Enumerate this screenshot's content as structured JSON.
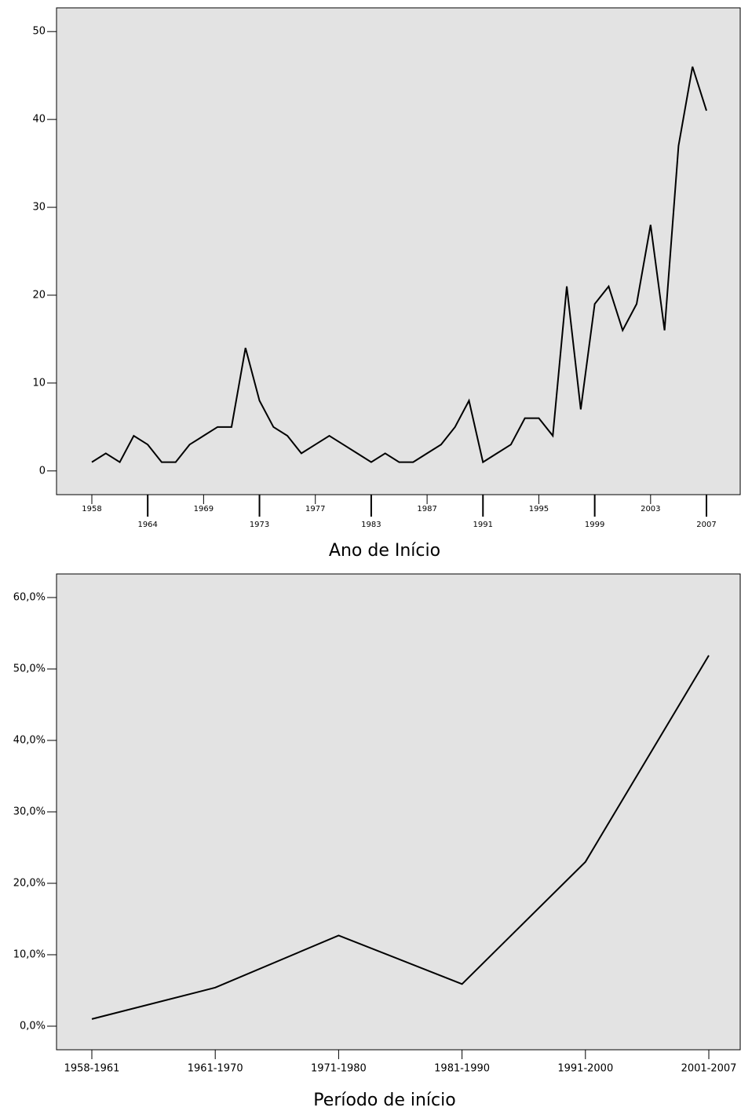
{
  "chart_data": [
    {
      "type": "line",
      "x_label": "Ano de Início",
      "categories": [
        "1958",
        null,
        null,
        null,
        "1964",
        null,
        null,
        null,
        "1969",
        null,
        null,
        null,
        "1973",
        null,
        null,
        null,
        "1977",
        null,
        null,
        null,
        "1983",
        null,
        null,
        null,
        "1987",
        null,
        null,
        null,
        "1991",
        null,
        null,
        null,
        "1995",
        null,
        null,
        null,
        "1999",
        null,
        null,
        null,
        "2003",
        null,
        null,
        null,
        "2007"
      ],
      "values": [
        1,
        2,
        1,
        4,
        3,
        1,
        1,
        3,
        4,
        5,
        5,
        14,
        8,
        5,
        4,
        2,
        3,
        4,
        3,
        2,
        1,
        2,
        1,
        1,
        2,
        3,
        5,
        8,
        1,
        2,
        3,
        6,
        6,
        4,
        21,
        7,
        19,
        21,
        16,
        19,
        28,
        16,
        37,
        46,
        41
      ],
      "color": "#000000",
      "ylim": [
        -2.7,
        52.7
      ],
      "yticks": [
        0,
        10,
        20,
        30,
        40,
        50
      ]
    },
    {
      "type": "line",
      "x_label": "Período de início",
      "categories": [
        "1958-1961",
        "1961-1970",
        "1971-1980",
        "1981-1990",
        "1991-2000",
        "2001-2007"
      ],
      "values": [
        1.0,
        5.4,
        12.7,
        5.9,
        23.0,
        51.9
      ],
      "color": "#000000",
      "ylim": [
        -3.3,
        63.3
      ],
      "yticks": [
        {
          "value": 0,
          "label": "0,0%"
        },
        {
          "value": 10,
          "label": "10,0%"
        },
        {
          "value": 20,
          "label": "20,0%"
        },
        {
          "value": 30,
          "label": "30,0%"
        },
        {
          "value": 40,
          "label": "40,0%"
        },
        {
          "value": 50,
          "label": "50,0%"
        },
        {
          "value": 60,
          "label": "60,0%"
        }
      ]
    }
  ]
}
